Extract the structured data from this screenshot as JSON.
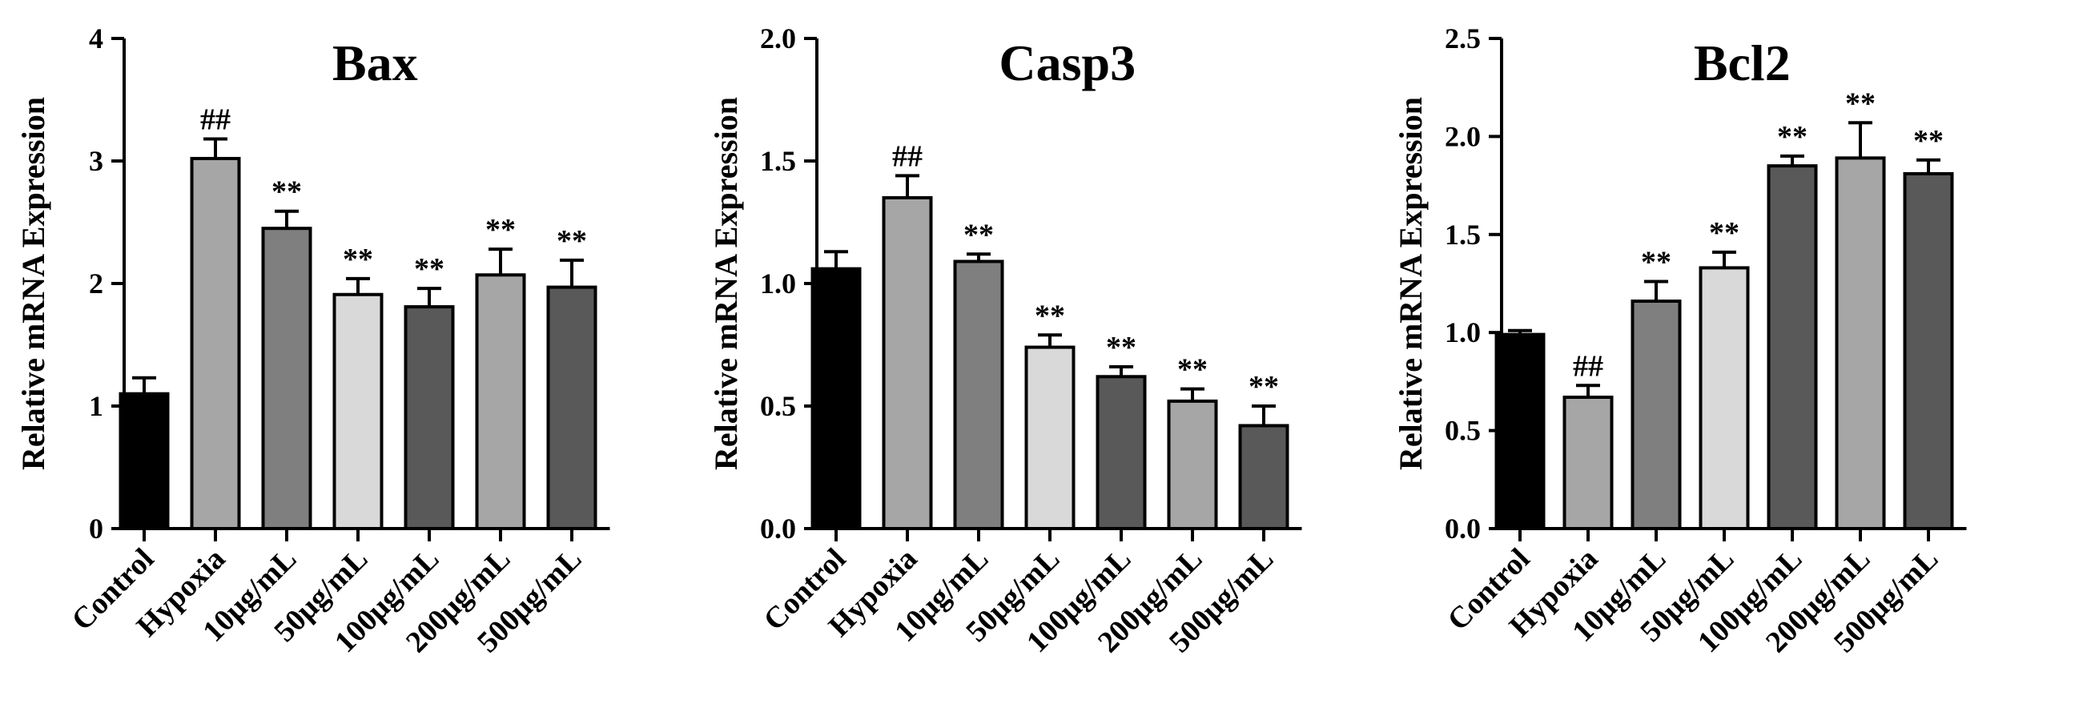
{
  "chart_data": [
    {
      "type": "bar",
      "title": "Bax",
      "ylabel": "Relative mRNA  Expression",
      "xlabel": "",
      "categories": [
        "Control",
        "Hypoxia",
        "10μg/mL",
        "50μg/mL",
        "100μg/mL",
        "200μg/mL",
        "500μg/mL"
      ],
      "values": [
        1.1,
        3.02,
        2.45,
        1.91,
        1.81,
        2.07,
        1.97
      ],
      "errors": [
        0.13,
        0.16,
        0.14,
        0.13,
        0.15,
        0.21,
        0.22
      ],
      "significance": [
        "",
        "##",
        "**",
        "**",
        "**",
        "**",
        "**"
      ],
      "ylim": [
        0,
        4
      ],
      "yticks": [
        "0",
        "1",
        "2",
        "3",
        "4"
      ],
      "bar_colors": [
        "#000000",
        "#a6a6a6",
        "#7f7f7f",
        "#d9d9d9",
        "#595959",
        "#a6a6a6",
        "#595959"
      ],
      "grid": false
    },
    {
      "type": "bar",
      "title": "Casp3",
      "ylabel": "Relative mRNA  Expression",
      "xlabel": "",
      "categories": [
        "Control",
        "Hypoxia",
        "10μg/mL",
        "50μg/mL",
        "100μg/mL",
        "200μg/mL",
        "500μg/mL"
      ],
      "values": [
        1.06,
        1.35,
        1.09,
        0.74,
        0.62,
        0.52,
        0.42
      ],
      "errors": [
        0.07,
        0.09,
        0.03,
        0.05,
        0.04,
        0.05,
        0.08
      ],
      "significance": [
        "",
        "##",
        "**",
        "**",
        "**",
        "**",
        "**"
      ],
      "ylim": [
        0,
        2.0
      ],
      "yticks": [
        "0.0",
        "0.5",
        "1.0",
        "1.5",
        "2.0"
      ],
      "bar_colors": [
        "#000000",
        "#a6a6a6",
        "#7f7f7f",
        "#d9d9d9",
        "#595959",
        "#a6a6a6",
        "#595959"
      ],
      "grid": false
    },
    {
      "type": "bar",
      "title": "Bcl2",
      "ylabel": "Relative mRNA  Expression",
      "xlabel": "",
      "categories": [
        "Control",
        "Hypoxia",
        "10μg/mL",
        "50μg/mL",
        "100μg/mL",
        "200μg/mL",
        "500μg/mL"
      ],
      "values": [
        0.99,
        0.67,
        1.16,
        1.33,
        1.85,
        1.89,
        1.81
      ],
      "errors": [
        0.02,
        0.06,
        0.1,
        0.08,
        0.05,
        0.18,
        0.07
      ],
      "significance": [
        "",
        "##",
        "**",
        "**",
        "**",
        "**",
        "**"
      ],
      "ylim": [
        0,
        2.5
      ],
      "yticks": [
        "0.0",
        "0.5",
        "1.0",
        "1.5",
        "2.0",
        "2.5"
      ],
      "bar_colors": [
        "#000000",
        "#a6a6a6",
        "#7f7f7f",
        "#d9d9d9",
        "#595959",
        "#a6a6a6",
        "#595959"
      ],
      "grid": false
    }
  ]
}
